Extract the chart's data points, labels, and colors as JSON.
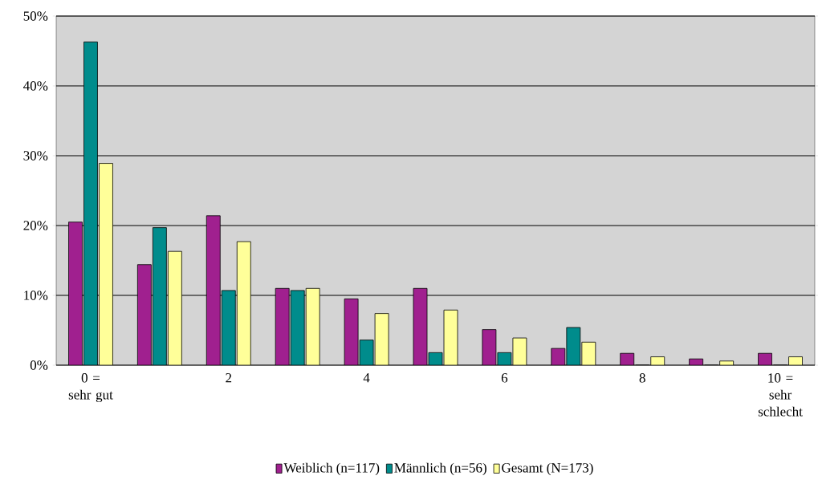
{
  "chart_data": {
    "type": "bar",
    "categories": [
      "0 = sehr gut",
      null,
      "2",
      null,
      "4",
      null,
      "6",
      null,
      "8",
      null,
      "10 = sehr schlecht"
    ],
    "series": [
      {
        "name": "Weiblich (n=117)",
        "color": "#a0208f",
        "values": [
          20.5,
          14.4,
          21.4,
          11.0,
          9.5,
          11.0,
          5.1,
          2.4,
          1.7,
          0.9,
          1.7
        ]
      },
      {
        "name": "Männlich (n=56)",
        "color": "#008c8c",
        "values": [
          46.3,
          19.7,
          10.7,
          10.7,
          3.6,
          1.8,
          1.8,
          5.4,
          0,
          0,
          0
        ]
      },
      {
        "name": "Gesamt (N=173)",
        "color": "#ffff99",
        "values": [
          28.9,
          16.3,
          17.7,
          11.0,
          7.4,
          7.9,
          3.9,
          3.3,
          1.2,
          0.6,
          1.2
        ]
      }
    ],
    "ylim": [
      0,
      50
    ],
    "yticks": [
      {
        "value": 0,
        "label": "0%"
      },
      {
        "value": 10,
        "label": "10%"
      },
      {
        "value": 20,
        "label": "20%"
      },
      {
        "value": 30,
        "label": "30%"
      },
      {
        "value": 40,
        "label": "40%"
      },
      {
        "value": 50,
        "label": "50%"
      }
    ],
    "grid": "y",
    "legend": "bottom"
  }
}
